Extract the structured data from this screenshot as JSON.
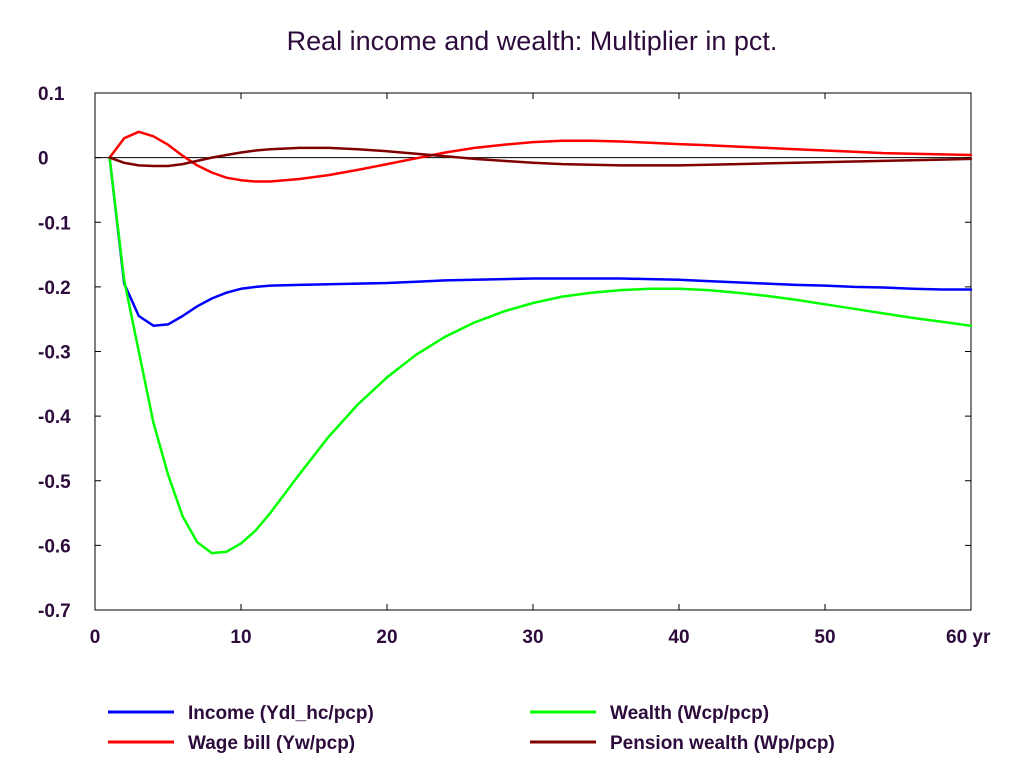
{
  "chart_data": {
    "type": "line",
    "title": "Real income and wealth: Multiplier in pct.",
    "xlabel": "",
    "ylabel": "",
    "xlim": [
      0,
      60
    ],
    "ylim": [
      -0.7,
      0.1
    ],
    "x_ticks": [
      0,
      10,
      20,
      30,
      40,
      50,
      60
    ],
    "x_tick_labels": [
      "0",
      "10",
      "20",
      "30",
      "40",
      "50",
      "60 yr"
    ],
    "y_ticks": [
      0.1,
      0,
      -0.1,
      -0.2,
      -0.3,
      -0.4,
      -0.5,
      -0.6,
      -0.7
    ],
    "y_tick_labels": [
      "0.1",
      "0",
      "-0.1",
      "-0.2",
      "-0.3",
      "-0.4",
      "-0.5",
      "-0.6",
      "-0.7"
    ],
    "grid": false,
    "zero_line": true,
    "legend_position": "bottom",
    "x": [
      1,
      2,
      3,
      4,
      5,
      6,
      7,
      8,
      9,
      10,
      11,
      12,
      14,
      16,
      18,
      20,
      22,
      24,
      26,
      28,
      30,
      32,
      34,
      36,
      38,
      40,
      42,
      44,
      46,
      48,
      50,
      52,
      54,
      56,
      58,
      60
    ],
    "series": [
      {
        "name": "Income (Ydl_hc/pcp)",
        "color": "#0000ff",
        "values": [
          0,
          -0.195,
          -0.245,
          -0.26,
          -0.258,
          -0.245,
          -0.23,
          -0.218,
          -0.209,
          -0.203,
          -0.2,
          -0.198,
          -0.197,
          -0.196,
          -0.195,
          -0.194,
          -0.192,
          -0.19,
          -0.189,
          -0.188,
          -0.187,
          -0.187,
          -0.187,
          -0.187,
          -0.188,
          -0.189,
          -0.191,
          -0.193,
          -0.195,
          -0.197,
          -0.198,
          -0.2,
          -0.201,
          -0.203,
          -0.204,
          -0.204
        ]
      },
      {
        "name": "Wage bill (Yw/pcp)",
        "color": "#ff0000",
        "values": [
          0,
          0.03,
          0.04,
          0.033,
          0.02,
          0.003,
          -0.012,
          -0.023,
          -0.031,
          -0.035,
          -0.037,
          -0.037,
          -0.033,
          -0.027,
          -0.019,
          -0.01,
          -0.001,
          0.008,
          0.015,
          0.02,
          0.024,
          0.026,
          0.026,
          0.025,
          0.023,
          0.021,
          0.019,
          0.017,
          0.015,
          0.013,
          0.011,
          0.009,
          0.007,
          0.006,
          0.005,
          0.004
        ]
      },
      {
        "name": "Wealth (Wcp/pcp)",
        "color": "#00ff00",
        "values": [
          0,
          -0.19,
          -0.3,
          -0.41,
          -0.49,
          -0.555,
          -0.595,
          -0.612,
          -0.61,
          -0.597,
          -0.577,
          -0.55,
          -0.49,
          -0.432,
          -0.382,
          -0.34,
          -0.305,
          -0.277,
          -0.255,
          -0.238,
          -0.225,
          -0.215,
          -0.209,
          -0.205,
          -0.203,
          -0.203,
          -0.205,
          -0.209,
          -0.214,
          -0.22,
          -0.227,
          -0.234,
          -0.241,
          -0.248,
          -0.254,
          -0.26
        ]
      },
      {
        "name": "Pension wealth (Wp/pcp)",
        "color": "#800000",
        "values": [
          0,
          -0.008,
          -0.012,
          -0.013,
          -0.013,
          -0.01,
          -0.005,
          0,
          0.004,
          0.008,
          0.011,
          0.013,
          0.015,
          0.015,
          0.013,
          0.01,
          0.006,
          0.002,
          -0.002,
          -0.005,
          -0.008,
          -0.01,
          -0.011,
          -0.012,
          -0.012,
          -0.012,
          -0.011,
          -0.01,
          -0.009,
          -0.008,
          -0.007,
          -0.006,
          -0.005,
          -0.004,
          -0.003,
          -0.002
        ]
      }
    ]
  }
}
